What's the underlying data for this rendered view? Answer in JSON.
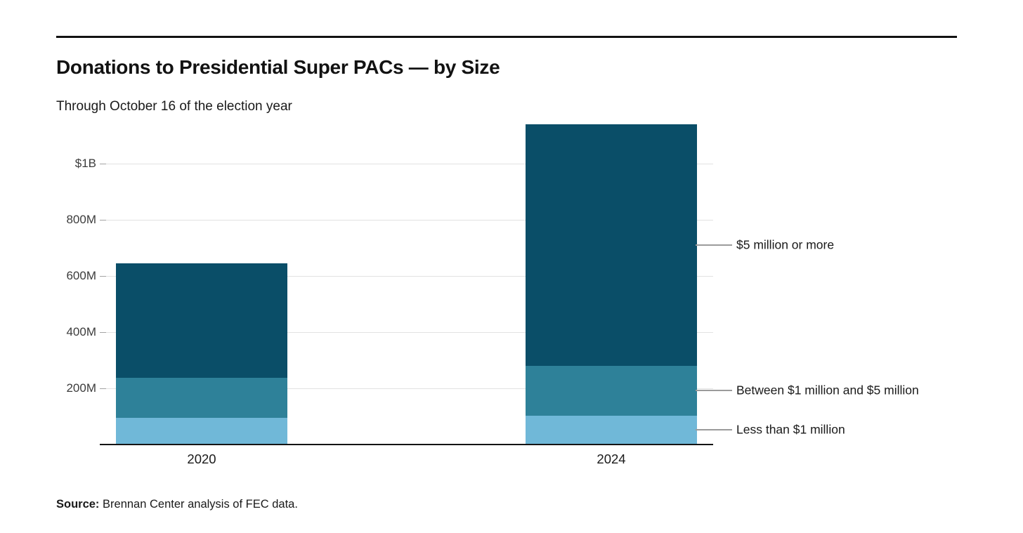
{
  "header": {
    "title": "Donations to Presidential Super PACs — by Size",
    "subtitle": "Through October 16 of the election year"
  },
  "source": {
    "label": "Source:",
    "text": " Brennan Center analysis of FEC data."
  },
  "colors": {
    "five_m_or_more": "#0a4e68",
    "between_1m_and_5m": "#2e8199",
    "less_than_1m": "#70b8d8",
    "gridline": "#e2e2e2",
    "tick_dash": "#a3a3a3",
    "axis_line": "#141414",
    "callout_line": "#9b9b9b",
    "text": "#1a1a1a"
  },
  "chart_data": {
    "type": "bar",
    "stacked": true,
    "title": "Donations to Presidential Super PACs — by Size",
    "subtitle": "Through October 16 of the election year",
    "unit": "USD millions",
    "categories": [
      "2020",
      "2024"
    ],
    "series": [
      {
        "key": "less-than-1m",
        "name": "Less than $1 million",
        "color": "#70b8d8",
        "values": [
          95,
          103
        ]
      },
      {
        "key": "between-1m-and-5m",
        "name": "Between $1 million and $5 million",
        "color": "#2e8199",
        "values": [
          142,
          177
        ]
      },
      {
        "key": "5m-or-more",
        "name": "$5 million or more",
        "color": "#0a4e68",
        "values": [
          408,
          860
        ]
      }
    ],
    "totals": [
      645,
      1140
    ],
    "ylim": [
      0,
      1150
    ],
    "y_ticks": [
      {
        "value": 200,
        "label": "200M"
      },
      {
        "value": 400,
        "label": "400M"
      },
      {
        "value": 600,
        "label": "600M"
      },
      {
        "value": 800,
        "label": "800M"
      },
      {
        "value": 1000,
        "label": "$1B"
      }
    ],
    "grid": "horizontal",
    "legend_position": "right-annotations",
    "annotations": [
      {
        "label": "$5 million or more",
        "series_key": "5m-or-more",
        "attached_to": "2024"
      },
      {
        "label": "Between $1 million and $5 million",
        "series_key": "between-1m-and-5m",
        "attached_to": "2024"
      },
      {
        "label": "Less than $1 million",
        "series_key": "less-than-1m",
        "attached_to": "2024"
      }
    ]
  }
}
